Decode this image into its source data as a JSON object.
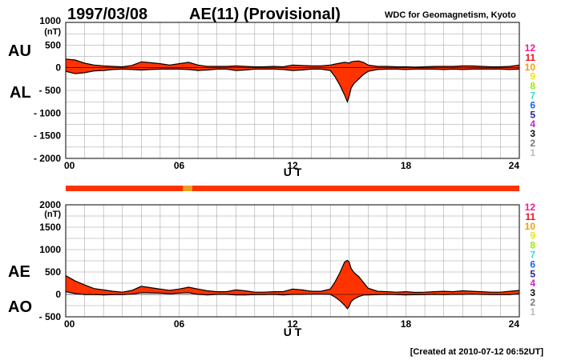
{
  "header": {
    "date": "1997/03/08",
    "title": "AE(11) (Provisional)",
    "source": "WDC for Geomagnetism, Kyoto"
  },
  "footer": {
    "created": "[Created at 2010-07-12 06:52UT]"
  },
  "colors": {
    "fill": "#ff3300",
    "outline": "#000000",
    "grid": "#999999",
    "level_bar": "#ff3300",
    "level_bar_highlight": "#e8a020"
  },
  "legend_levels": [
    {
      "label": "12",
      "color": "#ff1493"
    },
    {
      "label": "11",
      "color": "#ee1111"
    },
    {
      "label": "10",
      "color": "#ff9900"
    },
    {
      "label": "9",
      "color": "#e8e800"
    },
    {
      "label": "8",
      "color": "#99ee00"
    },
    {
      "label": "7",
      "color": "#33dddd"
    },
    {
      "label": "6",
      "color": "#1166ff"
    },
    {
      "label": "5",
      "color": "#2222aa"
    },
    {
      "label": "4",
      "color": "#cc22cc"
    },
    {
      "label": "3",
      "color": "#111111"
    },
    {
      "label": "2",
      "color": "#777777"
    },
    {
      "label": "1",
      "color": "#bbbbbb"
    }
  ],
  "level_bar": {
    "base_level": "11",
    "highlight_level": "10",
    "highlight_hours": [
      6.2,
      6.7
    ]
  },
  "chart_data": [
    {
      "type": "area",
      "unit_label": "(nT)",
      "upper_label": "AU",
      "lower_label": "AL",
      "xlabel": "U T",
      "xlim": [
        0,
        24
      ],
      "ylim": [
        -2000,
        1000
      ],
      "x_ticks": [
        "00",
        "06",
        "12",
        "18",
        "24"
      ],
      "y_ticks": [
        "1000",
        "500",
        "0",
        "- 500",
        "- 1000",
        "- 1500",
        "- 2000"
      ],
      "hours": [
        0,
        0.5,
        1,
        1.5,
        2,
        2.5,
        3,
        3.5,
        4,
        4.5,
        5,
        5.5,
        6,
        6.5,
        7,
        7.5,
        8,
        8.5,
        9,
        9.5,
        10,
        10.5,
        11,
        11.5,
        12,
        12.5,
        13,
        13.5,
        14,
        14.25,
        14.5,
        14.75,
        14.9,
        15,
        15.1,
        15.25,
        15.5,
        15.75,
        16,
        16.5,
        17,
        17.5,
        18,
        18.5,
        19,
        19.5,
        20,
        20.5,
        21,
        21.5,
        22,
        22.5,
        23,
        23.5,
        24
      ],
      "series": [
        {
          "name": "AU",
          "values": [
            190,
            170,
            100,
            60,
            40,
            30,
            20,
            50,
            130,
            110,
            90,
            60,
            90,
            120,
            60,
            30,
            30,
            30,
            40,
            30,
            20,
            20,
            30,
            20,
            60,
            50,
            40,
            40,
            60,
            80,
            100,
            120,
            110,
            100,
            130,
            140,
            150,
            120,
            60,
            30,
            30,
            20,
            20,
            15,
            20,
            30,
            30,
            30,
            40,
            40,
            30,
            20,
            20,
            30,
            60
          ]
        },
        {
          "name": "AL",
          "values": [
            -80,
            -130,
            -110,
            -70,
            -60,
            -40,
            -30,
            -40,
            -50,
            -40,
            -30,
            -30,
            -30,
            -40,
            -60,
            -50,
            -30,
            -30,
            -60,
            -50,
            -30,
            -30,
            -30,
            -40,
            -60,
            -50,
            -30,
            -30,
            -60,
            -200,
            -380,
            -600,
            -750,
            -620,
            -450,
            -350,
            -250,
            -150,
            -80,
            -40,
            -30,
            -30,
            -40,
            -30,
            -30,
            -30,
            -40,
            -30,
            -40,
            -30,
            -30,
            -30,
            -30,
            -40,
            -30
          ]
        }
      ]
    },
    {
      "type": "area",
      "unit_label": "(nT)",
      "upper_label": "AE",
      "lower_label": "AO",
      "xlabel": "U T",
      "xlim": [
        0,
        24
      ],
      "ylim": [
        -500,
        2000
      ],
      "x_ticks": [
        "00",
        "06",
        "12",
        "18",
        "24"
      ],
      "y_ticks": [
        "2000",
        "1500",
        "1000",
        "500",
        "0",
        "- 500"
      ],
      "hours": [
        0,
        0.5,
        1,
        1.5,
        2,
        2.5,
        3,
        3.5,
        4,
        4.5,
        5,
        5.5,
        6,
        6.5,
        7,
        7.5,
        8,
        8.5,
        9,
        9.5,
        10,
        10.5,
        11,
        11.5,
        12,
        12.5,
        13,
        13.5,
        14,
        14.25,
        14.5,
        14.75,
        14.9,
        15,
        15.1,
        15.25,
        15.5,
        15.75,
        16,
        16.5,
        17,
        17.5,
        18,
        18.5,
        19,
        19.5,
        20,
        20.5,
        21,
        21.5,
        22,
        22.5,
        23,
        23.5,
        24
      ],
      "series": [
        {
          "name": "AE",
          "values": [
            420,
            300,
            210,
            130,
            100,
            70,
            50,
            90,
            180,
            150,
            120,
            90,
            120,
            160,
            120,
            80,
            60,
            60,
            100,
            80,
            50,
            50,
            60,
            60,
            120,
            100,
            70,
            70,
            120,
            280,
            480,
            720,
            760,
            720,
            580,
            490,
            400,
            270,
            140,
            70,
            60,
            50,
            60,
            45,
            50,
            60,
            70,
            60,
            80,
            70,
            60,
            50,
            50,
            70,
            90
          ]
        },
        {
          "name": "AO",
          "values": [
            60,
            20,
            -5,
            -5,
            -10,
            -5,
            -5,
            5,
            40,
            35,
            30,
            15,
            30,
            40,
            0,
            -10,
            0,
            0,
            -10,
            -10,
            -5,
            -5,
            0,
            -10,
            0,
            0,
            5,
            5,
            0,
            -60,
            -140,
            -240,
            -320,
            -260,
            -160,
            -105,
            -50,
            -15,
            -10,
            -5,
            0,
            -5,
            -10,
            -8,
            -5,
            0,
            -5,
            0,
            0,
            5,
            0,
            -5,
            -5,
            -5,
            15
          ]
        }
      ]
    }
  ]
}
